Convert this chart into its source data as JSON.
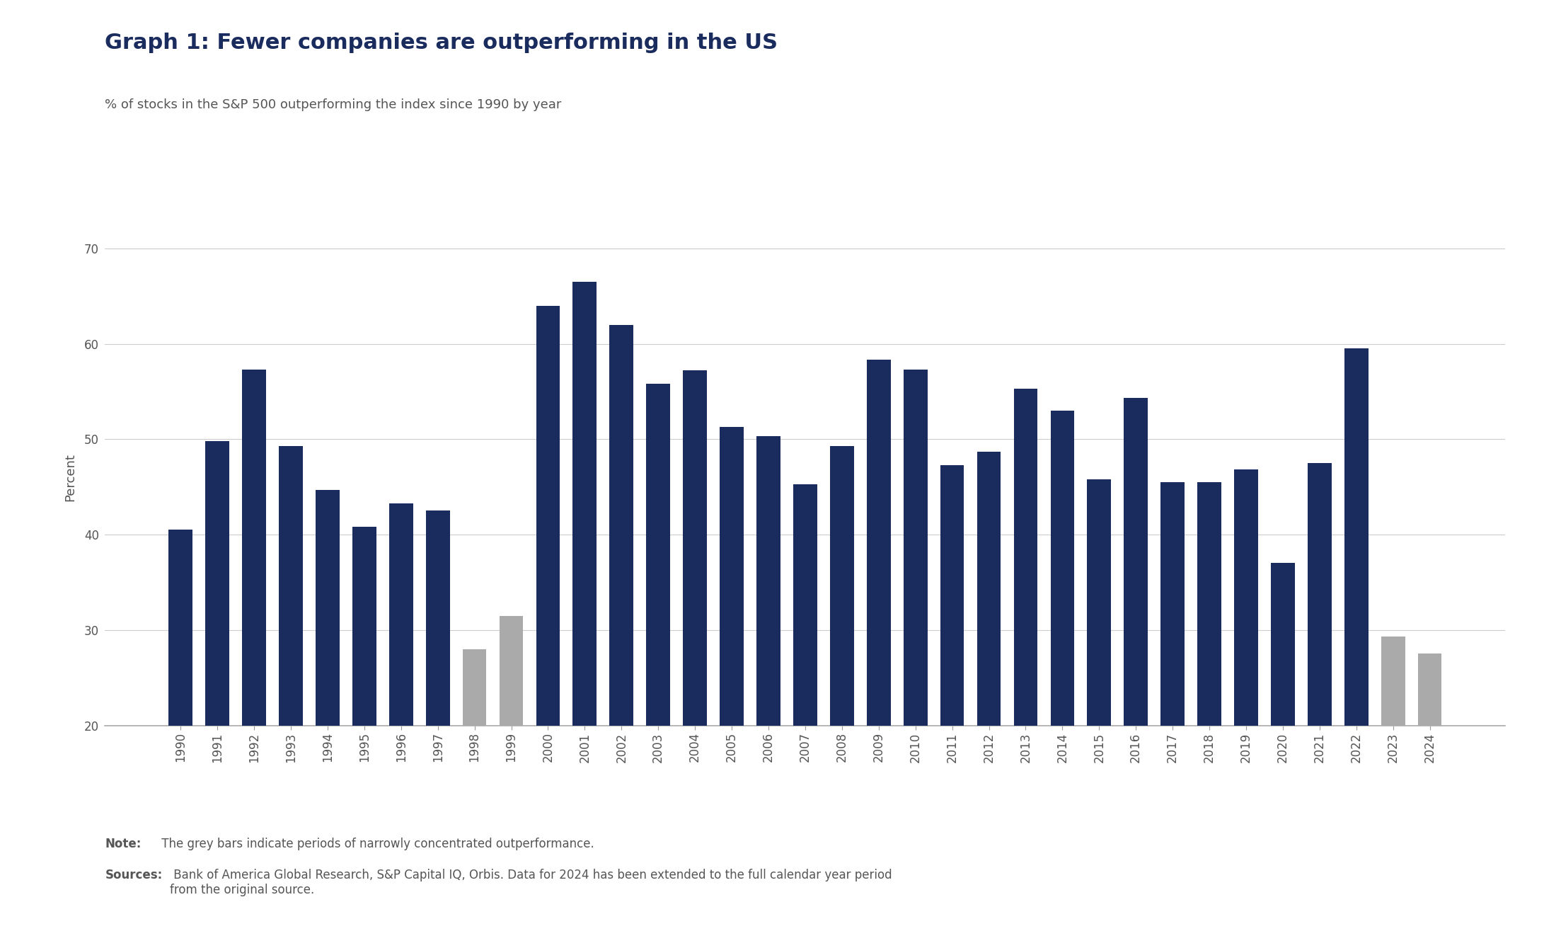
{
  "title": "Graph 1: Fewer companies are outperforming in the US",
  "subtitle": "% of stocks in the S&P 500 outperforming the index since 1990 by year",
  "ylabel": "Percent",
  "note_label": "Note:",
  "note_text": " The grey bars indicate periods of narrowly concentrated outperformance.",
  "sources_label": "Sources:",
  "sources_text": " Bank of America Global Research, S&P Capital IQ, Orbis. Data for 2024 has been extended to the full calendar year period\nfrom the original source.",
  "years": [
    1990,
    1991,
    1992,
    1993,
    1994,
    1995,
    1996,
    1997,
    1998,
    1999,
    2000,
    2001,
    2002,
    2003,
    2004,
    2005,
    2006,
    2007,
    2008,
    2009,
    2010,
    2011,
    2012,
    2013,
    2014,
    2015,
    2016,
    2017,
    2018,
    2019,
    2020,
    2021,
    2022,
    2023,
    2024
  ],
  "values": [
    40.5,
    49.8,
    57.3,
    49.3,
    44.7,
    40.8,
    43.3,
    42.5,
    28.0,
    31.5,
    64.0,
    66.5,
    62.0,
    55.8,
    57.2,
    51.3,
    50.3,
    45.3,
    49.3,
    58.3,
    57.3,
    47.3,
    48.7,
    55.3,
    53.0,
    45.8,
    54.3,
    45.5,
    45.5,
    46.8,
    37.0,
    47.5,
    59.5,
    29.3,
    27.5
  ],
  "grey_years": [
    1998,
    1999,
    2023,
    2024
  ],
  "bar_color_navy": "#1a2b5e",
  "bar_color_grey": "#aaaaaa",
  "title_color": "#1a2b5e",
  "subtitle_color": "#555555",
  "note_color": "#555555",
  "ylabel_color": "#555555",
  "background_color": "#ffffff",
  "ylim": [
    20,
    72
  ],
  "yticks": [
    20,
    30,
    40,
    50,
    60,
    70
  ],
  "grid_color": "#cccccc",
  "title_fontsize": 22,
  "subtitle_fontsize": 13,
  "ylabel_fontsize": 13,
  "tick_fontsize": 12,
  "note_fontsize": 12
}
